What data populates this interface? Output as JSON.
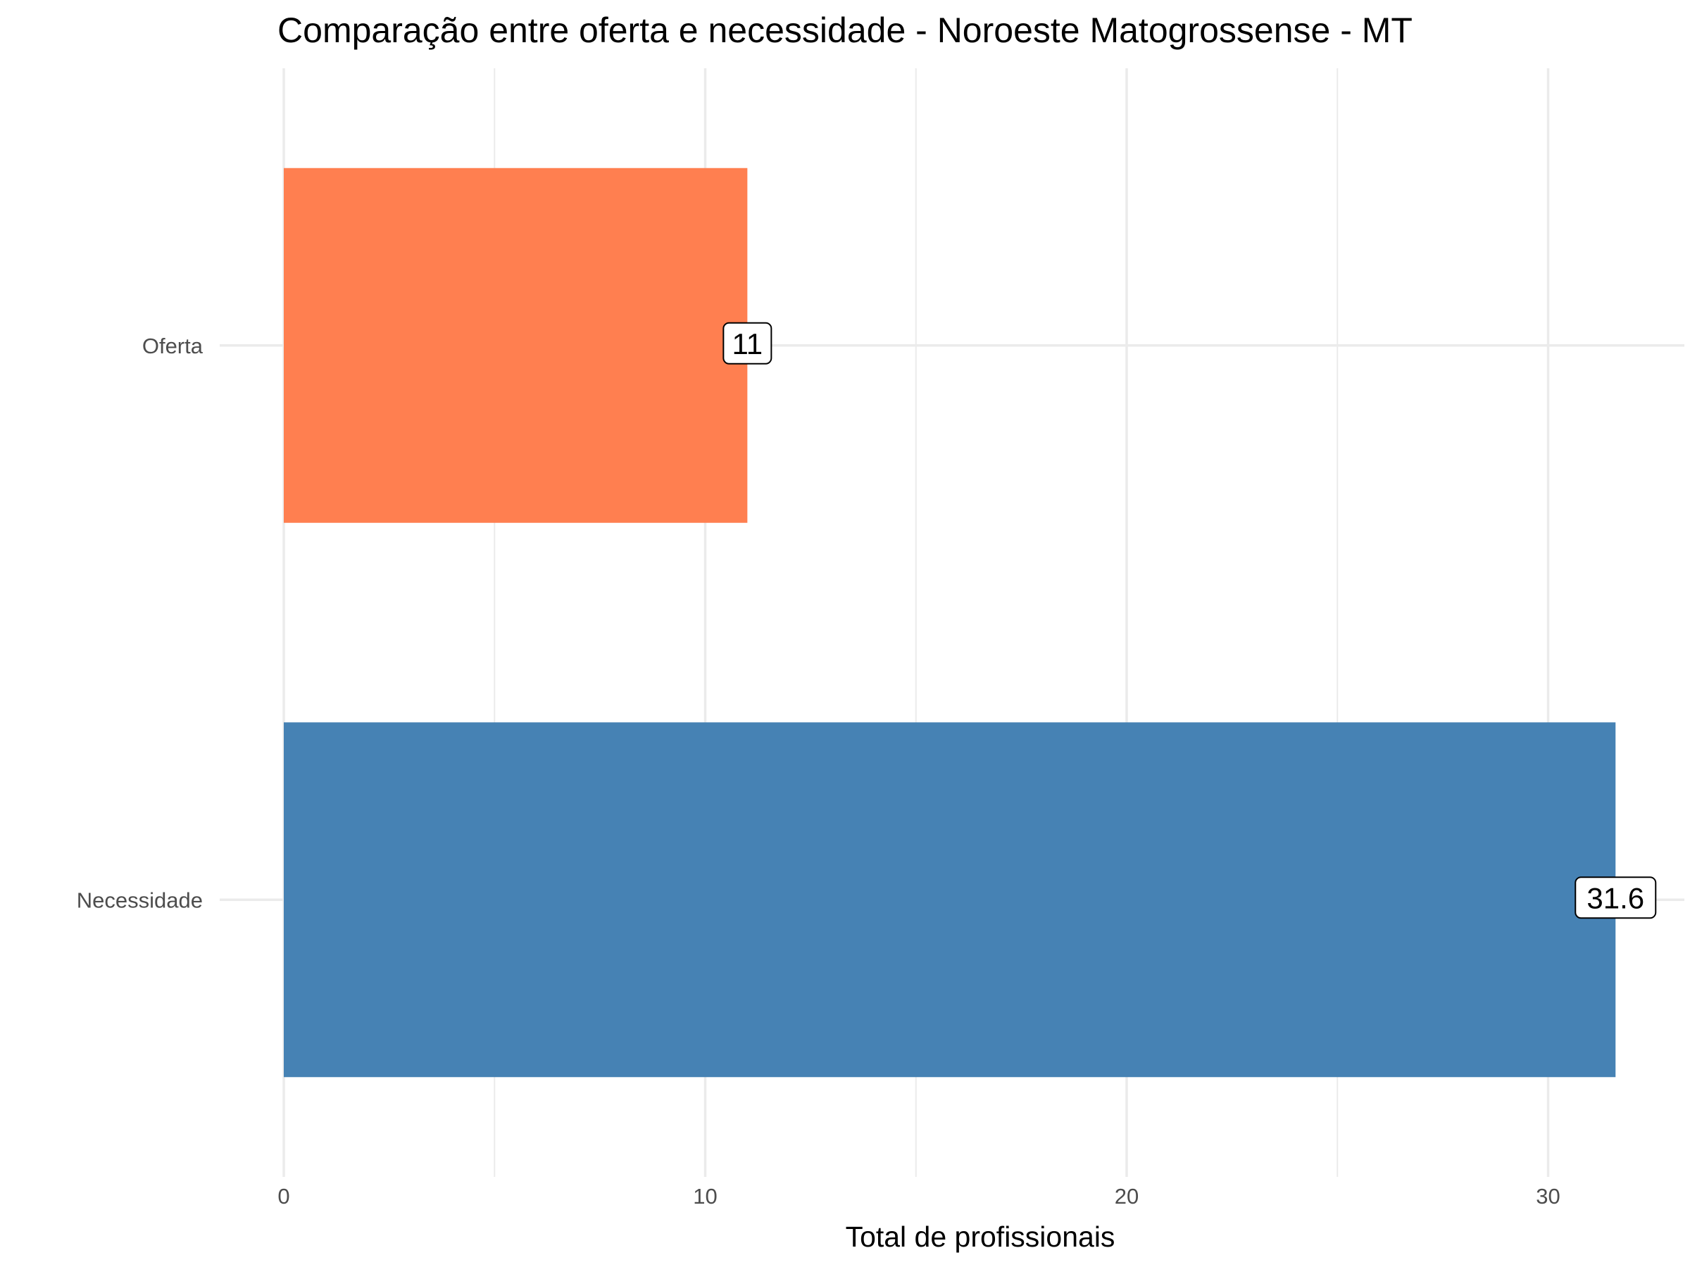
{
  "chart_data": {
    "type": "bar",
    "orientation": "horizontal",
    "title": "Comparação entre oferta e necessidade - Noroeste Matogrossense - MT",
    "xlabel": "Total de profissionais",
    "ylabel": "",
    "categories": [
      "Necessidade",
      "Oferta"
    ],
    "values": [
      31.6,
      11
    ],
    "data_labels": [
      "31.6",
      "11"
    ],
    "colors": [
      "#4682B4",
      "#FF7F50"
    ],
    "xlim": [
      0,
      33
    ],
    "x_ticks": [
      0,
      10,
      20,
      30
    ],
    "x_tick_labels": [
      "0",
      "10",
      "20",
      "30"
    ],
    "grid": true,
    "legend": "none"
  }
}
